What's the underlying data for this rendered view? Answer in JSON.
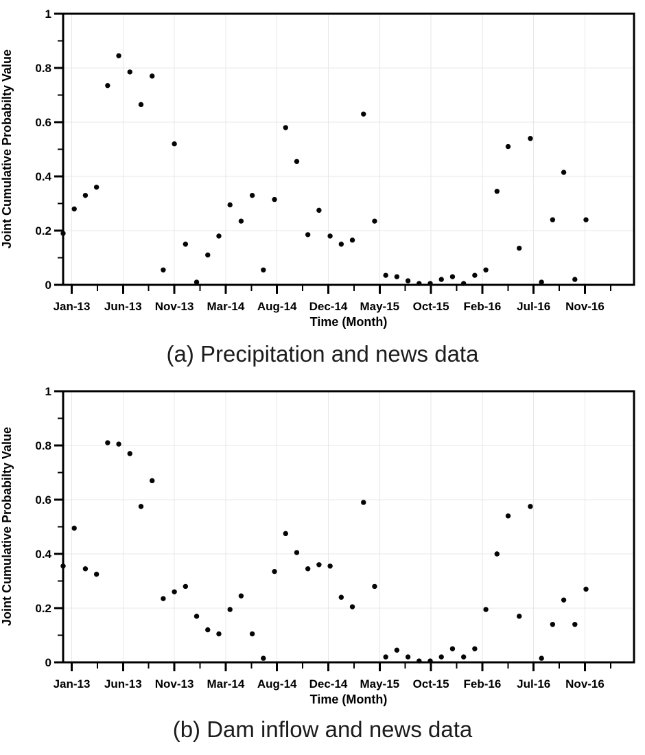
{
  "page": {
    "background": "#ffffff"
  },
  "chart_data": [
    {
      "id": "a",
      "type": "scatter",
      "caption": "(a) Precipitation and news data",
      "xlabel": "Time (Month)",
      "ylabel": "Joint Cumulative Probabilty Value",
      "ylim": [
        0,
        1
      ],
      "grid": true,
      "legend": "none",
      "marker_color": "#000000",
      "yticks": [
        0,
        0.2,
        0.4,
        0.6,
        0.8,
        1
      ],
      "ytick_labels": [
        "0",
        "0.2",
        "0.4",
        "0.6",
        "0.8",
        "1"
      ],
      "yticks_minor": [
        0.1,
        0.3,
        0.5,
        0.7,
        0.9
      ],
      "xtick_labels": [
        "Jan-13",
        "Jun-13",
        "Nov-13",
        "Mar-14",
        "Aug-14",
        "Dec-14",
        "May-15",
        "Oct-15",
        "Feb-16",
        "Jul-16",
        "Nov-16"
      ],
      "categories": [
        "Jan-13",
        "Feb-13",
        "Mar-13",
        "Apr-13",
        "May-13",
        "Jun-13",
        "Jul-13",
        "Aug-13",
        "Sep-13",
        "Oct-13",
        "Nov-13",
        "Dec-13",
        "Jan-14",
        "Feb-14",
        "Mar-14",
        "Apr-14",
        "May-14",
        "Jun-14",
        "Jul-14",
        "Aug-14",
        "Sep-14",
        "Oct-14",
        "Nov-14",
        "Dec-14",
        "Jan-15",
        "Feb-15",
        "Mar-15",
        "Apr-15",
        "May-15",
        "Jun-15",
        "Jul-15",
        "Aug-15",
        "Sep-15",
        "Oct-15",
        "Nov-15",
        "Dec-15",
        "Jan-16",
        "Feb-16",
        "Mar-16",
        "Apr-16",
        "May-16",
        "Jun-16",
        "Jul-16",
        "Aug-16",
        "Sep-16",
        "Oct-16",
        "Nov-16",
        "Dec-16"
      ],
      "values": [
        0.19,
        0.28,
        0.33,
        0.36,
        0.735,
        0.845,
        0.785,
        0.665,
        0.77,
        0.055,
        0.52,
        0.15,
        0.01,
        0.11,
        0.18,
        0.295,
        0.235,
        0.33,
        0.055,
        0.315,
        0.58,
        0.455,
        0.185,
        0.275,
        0.18,
        0.15,
        0.165,
        0.63,
        0.235,
        0.035,
        0.03,
        0.015,
        0.005,
        0.005,
        0.02,
        0.03,
        0.005,
        0.035,
        0.055,
        0.345,
        0.51,
        0.135,
        0.54,
        0.01,
        0.24,
        0.415,
        0.02,
        0.24
      ]
    },
    {
      "id": "b",
      "type": "scatter",
      "caption": "(b) Dam inflow and news data",
      "xlabel": "Time (Month)",
      "ylabel": "Joint Cumulative Probabilty Value",
      "ylim": [
        0,
        1
      ],
      "grid": true,
      "legend": "none",
      "marker_color": "#000000",
      "yticks": [
        0,
        0.2,
        0.4,
        0.6,
        0.8,
        1
      ],
      "ytick_labels": [
        "0",
        "0.2",
        "0.4",
        "0.6",
        "0.8",
        "1"
      ],
      "yticks_minor": [
        0.1,
        0.3,
        0.5,
        0.7,
        0.9
      ],
      "xtick_labels": [
        "Jan-13",
        "Jun-13",
        "Nov-13",
        "Mar-14",
        "Aug-14",
        "Dec-14",
        "May-15",
        "Oct-15",
        "Feb-16",
        "Jul-16",
        "Nov-16"
      ],
      "categories": [
        "Jan-13",
        "Feb-13",
        "Mar-13",
        "Apr-13",
        "May-13",
        "Jun-13",
        "Jul-13",
        "Aug-13",
        "Sep-13",
        "Oct-13",
        "Nov-13",
        "Dec-13",
        "Jan-14",
        "Feb-14",
        "Mar-14",
        "Apr-14",
        "May-14",
        "Jun-14",
        "Jul-14",
        "Aug-14",
        "Sep-14",
        "Oct-14",
        "Nov-14",
        "Dec-14",
        "Jan-15",
        "Feb-15",
        "Mar-15",
        "Apr-15",
        "May-15",
        "Jun-15",
        "Jul-15",
        "Aug-15",
        "Sep-15",
        "Oct-15",
        "Nov-15",
        "Dec-15",
        "Jan-16",
        "Feb-16",
        "Mar-16",
        "Apr-16",
        "May-16",
        "Jun-16",
        "Jul-16",
        "Aug-16",
        "Sep-16",
        "Oct-16",
        "Nov-16",
        "Dec-16"
      ],
      "values": [
        0.355,
        0.495,
        0.345,
        0.325,
        0.81,
        0.805,
        0.77,
        0.575,
        0.67,
        0.235,
        0.26,
        0.28,
        0.17,
        0.12,
        0.105,
        0.195,
        0.245,
        0.105,
        0.015,
        0.335,
        0.475,
        0.405,
        0.345,
        0.36,
        0.355,
        0.24,
        0.205,
        0.59,
        0.28,
        0.02,
        0.045,
        0.02,
        0.005,
        0.005,
        0.02,
        0.05,
        0.02,
        0.05,
        0.195,
        0.4,
        0.54,
        0.17,
        0.575,
        0.015,
        0.14,
        0.23,
        0.14,
        0.27
      ]
    }
  ]
}
